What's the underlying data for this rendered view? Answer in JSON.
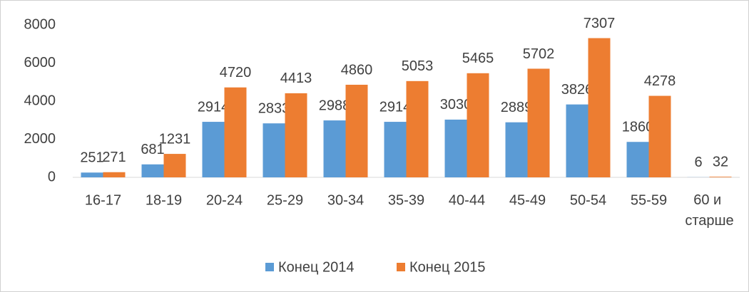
{
  "chart_data": {
    "type": "bar",
    "categories": [
      "16-17",
      "18-19",
      "20-24",
      "25-29",
      "30-34",
      "35-39",
      "40-44",
      "45-49",
      "50-54",
      "55-59",
      "60 и старше"
    ],
    "series": [
      {
        "name": "Конец 2014",
        "color": "#5b9bd5",
        "values": [
          251,
          681,
          2914,
          2833,
          2988,
          2914,
          3030,
          2889,
          3826,
          1860,
          6
        ]
      },
      {
        "name": "Конец 2015",
        "color": "#ed7d31",
        "values": [
          271,
          1231,
          4720,
          4413,
          4860,
          5053,
          5465,
          5702,
          7307,
          4278,
          32
        ]
      }
    ],
    "ylim": [
      0,
      8000
    ],
    "yticks": [
      0,
      2000,
      4000,
      6000,
      8000
    ],
    "grid": false,
    "legend": "bottom"
  }
}
